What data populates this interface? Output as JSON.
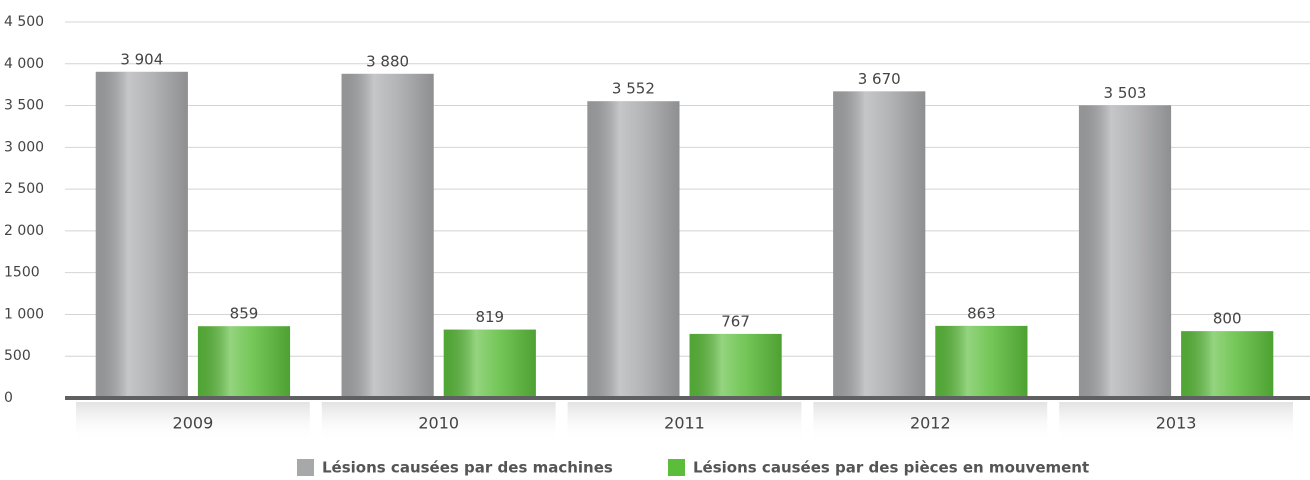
{
  "chart_data": {
    "type": "bar",
    "categories": [
      "2009",
      "2010",
      "2011",
      "2012",
      "2013"
    ],
    "series": [
      {
        "name": "Lésions causées par des machines",
        "color": "#a7a8aa",
        "values": [
          3904,
          3880,
          3552,
          3670,
          3503
        ],
        "value_labels": [
          "3 904",
          "3 880",
          "3 552",
          "3 670",
          "3 503"
        ]
      },
      {
        "name": "Lésions causées par des pièces en mouvement",
        "color": "#5bbd3a",
        "values": [
          859,
          819,
          767,
          863,
          800
        ],
        "value_labels": [
          "859",
          "819",
          "767",
          "863",
          "800"
        ]
      }
    ],
    "ylim": [
      0,
      4500
    ],
    "yticks": [
      0,
      500,
      {
        "value": 1000,
        "label": "1 000"
      },
      {
        "value": 1500,
        "label": "1500"
      },
      {
        "value": 2000,
        "label": "2 000"
      },
      {
        "value": 2500,
        "label": "2 500"
      },
      {
        "value": 3000,
        "label": "3 000"
      },
      {
        "value": 3500,
        "label": "3 500"
      },
      {
        "value": 4000,
        "label": "4 000"
      },
      {
        "value": 4500,
        "label": "4 500"
      }
    ],
    "grid": true,
    "legend": "bottom"
  }
}
